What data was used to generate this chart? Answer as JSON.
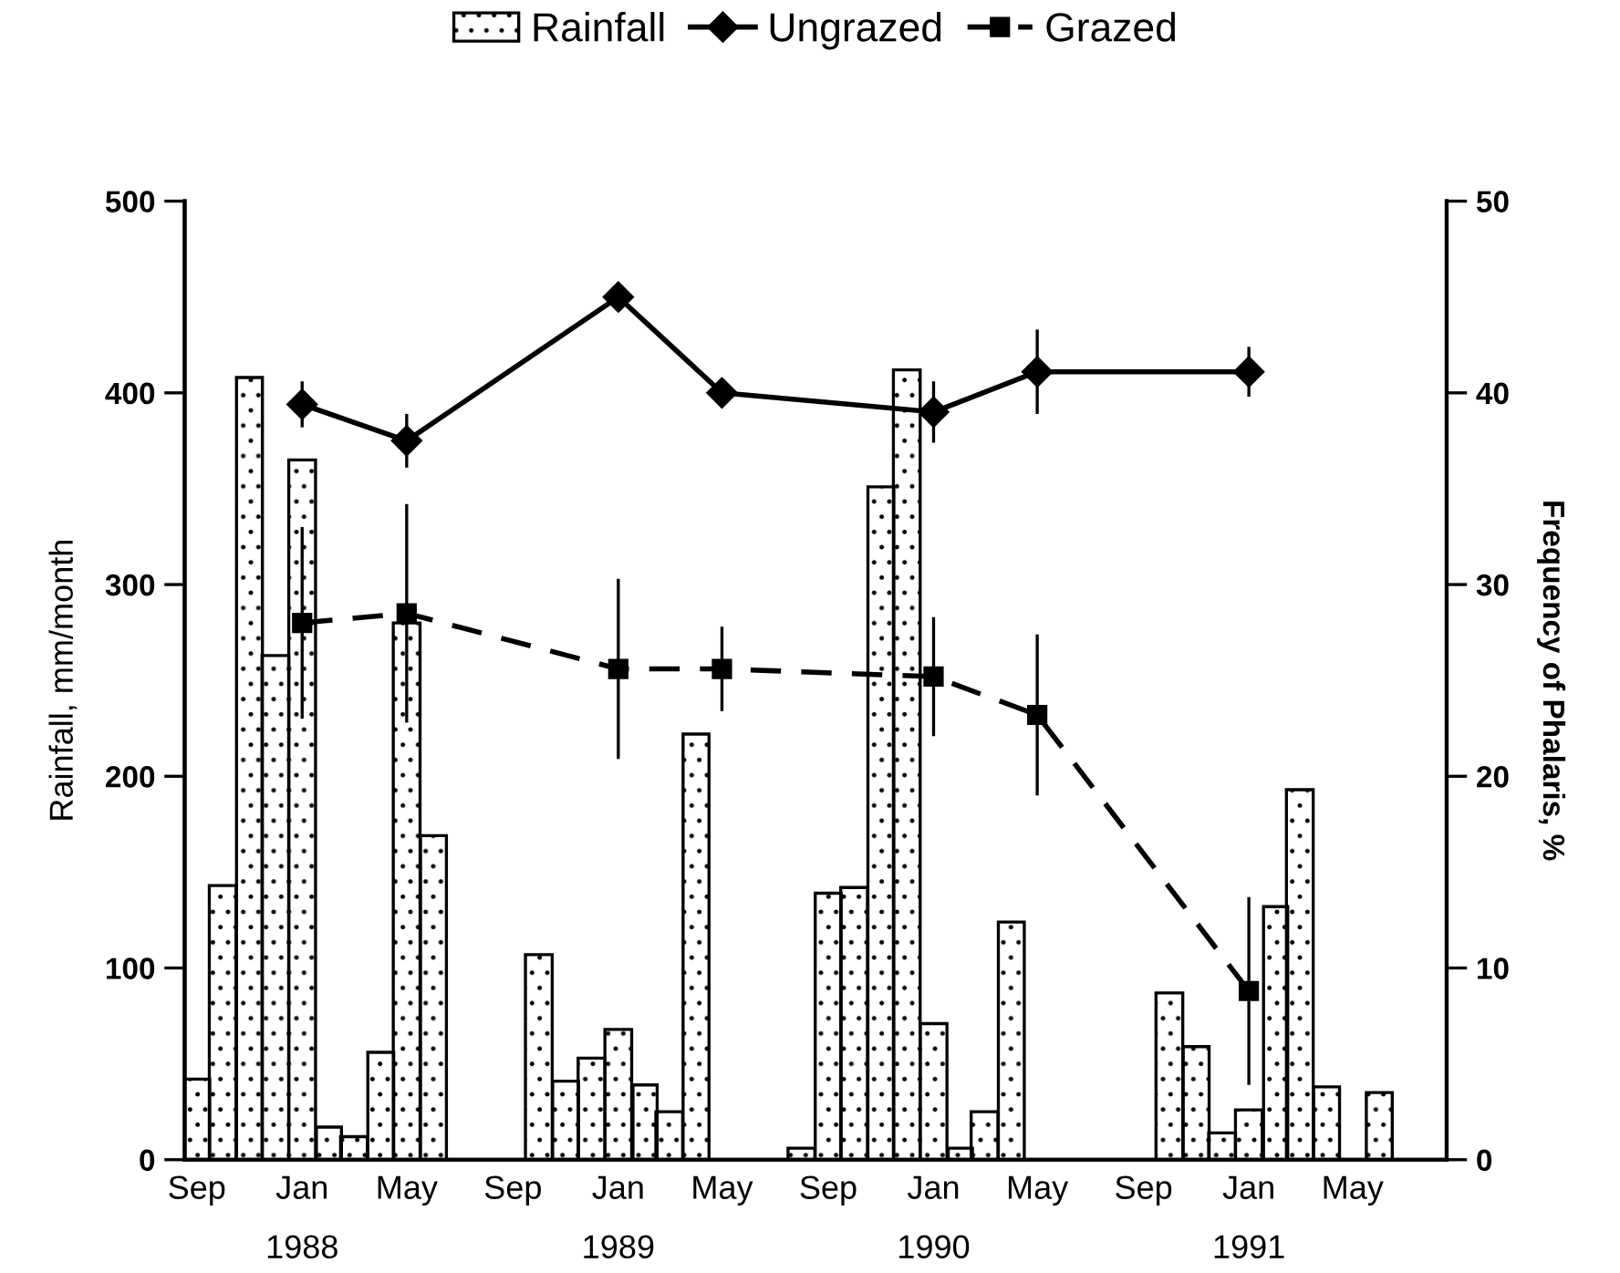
{
  "chart_data": {
    "type": "bar",
    "xlabel": null,
    "ylabel": "Rainfall, mm/month",
    "y2label": "Frequency of Phalaris, %",
    "legend": "top",
    "grid": false,
    "xlim": [
      "1987-09",
      "1991-09"
    ],
    "xticks": [
      {
        "value": "1987-09-15",
        "label": "Sep"
      },
      {
        "value": "1988-01-15",
        "label": "Jan\n1988"
      },
      {
        "value": "1988-05-15",
        "label": "May"
      },
      {
        "value": "1988-09-15",
        "label": "Sep"
      },
      {
        "value": "1989-01-15",
        "label": "Jan\n1989"
      },
      {
        "value": "1989-05-15",
        "label": "May"
      },
      {
        "value": "1989-09-15",
        "label": "Sep"
      },
      {
        "value": "1990-01-15",
        "label": "Jan\n1990"
      },
      {
        "value": "1990-05-15",
        "label": "May"
      },
      {
        "value": "1990-09-15",
        "label": "Sep"
      },
      {
        "value": "1991-01-15",
        "label": "Jan\n1991"
      },
      {
        "value": "1991-05-15",
        "label": "May"
      }
    ],
    "ylim": [
      0,
      500
    ],
    "yticks": [
      0,
      100,
      200,
      300,
      400,
      500
    ],
    "y2lim": [
      0,
      50
    ],
    "y2ticks": [
      0,
      10,
      20,
      30,
      40,
      50
    ],
    "series": [
      {
        "name": "Rainfall",
        "color": "#000000",
        "x": [
          "1987-09-15",
          "1987-10-15",
          "1987-11-15",
          "1987-12-15",
          "1988-01-15",
          "1988-02-15",
          "1988-03-15",
          "1988-04-15",
          "1988-05-15",
          "1988-06-15",
          "1988-07-15",
          "1988-08-15",
          "1988-09-15",
          "1988-10-15",
          "1988-11-15",
          "1988-12-15",
          "1989-01-15",
          "1989-02-15",
          "1989-03-15",
          "1989-04-15",
          "1989-05-15",
          "1989-06-15",
          "1989-07-15",
          "1989-08-15",
          "1989-09-15",
          "1989-10-15",
          "1989-11-15",
          "1989-12-15",
          "1990-01-15",
          "1990-02-15",
          "1990-03-15",
          "1990-04-15",
          "1990-05-15",
          "1990-06-15",
          "1990-07-15",
          "1990-08-15",
          "1990-09-15",
          "1990-10-15",
          "1990-11-15",
          "1990-12-15",
          "1991-01-15",
          "1991-02-15",
          "1991-03-15",
          "1991-04-15",
          "1991-05-15",
          "1991-06-15",
          "1991-07-15",
          "1991-08-15"
        ],
        "values": [
          42,
          143,
          408,
          263,
          365,
          17,
          12,
          56,
          280,
          169,
          0,
          0,
          0,
          107,
          41,
          53,
          68,
          39,
          25,
          222,
          0,
          0,
          0,
          6,
          139,
          142,
          351,
          412,
          71,
          6,
          25,
          124,
          0,
          0,
          0,
          0,
          0,
          87,
          59,
          14,
          26,
          132,
          193,
          38,
          0,
          35,
          0,
          0
        ]
      },
      {
        "name": "Ungrazed",
        "type": "line",
        "axis": "y2",
        "color": "#000000",
        "marker": "diamond",
        "line_style": "solid",
        "x": [
          "1988-01-15",
          "1988-05-15",
          "1989-01-15",
          "1989-05-15",
          "1990-01-15",
          "1990-05-15",
          "1991-01-15"
        ],
        "values": [
          39.4,
          37.5,
          45.0,
          40.0,
          39.0,
          41.1,
          41.1
        ],
        "errors": [
          1.2,
          1.4,
          null,
          null,
          1.6,
          2.2,
          1.3
        ]
      },
      {
        "name": "Grazed",
        "type": "line",
        "axis": "y2",
        "color": "#000000",
        "marker": "square",
        "line_style": "dashed",
        "x": [
          "1988-01-15",
          "1988-05-15",
          "1989-01-15",
          "1989-05-15",
          "1990-01-15",
          "1990-05-15",
          "1991-01-15"
        ],
        "values": [
          28.0,
          28.5,
          25.6,
          25.6,
          25.2,
          23.2,
          8.8
        ],
        "errors": [
          5.0,
          5.7,
          4.7,
          2.2,
          3.1,
          4.2,
          4.9
        ]
      }
    ]
  }
}
